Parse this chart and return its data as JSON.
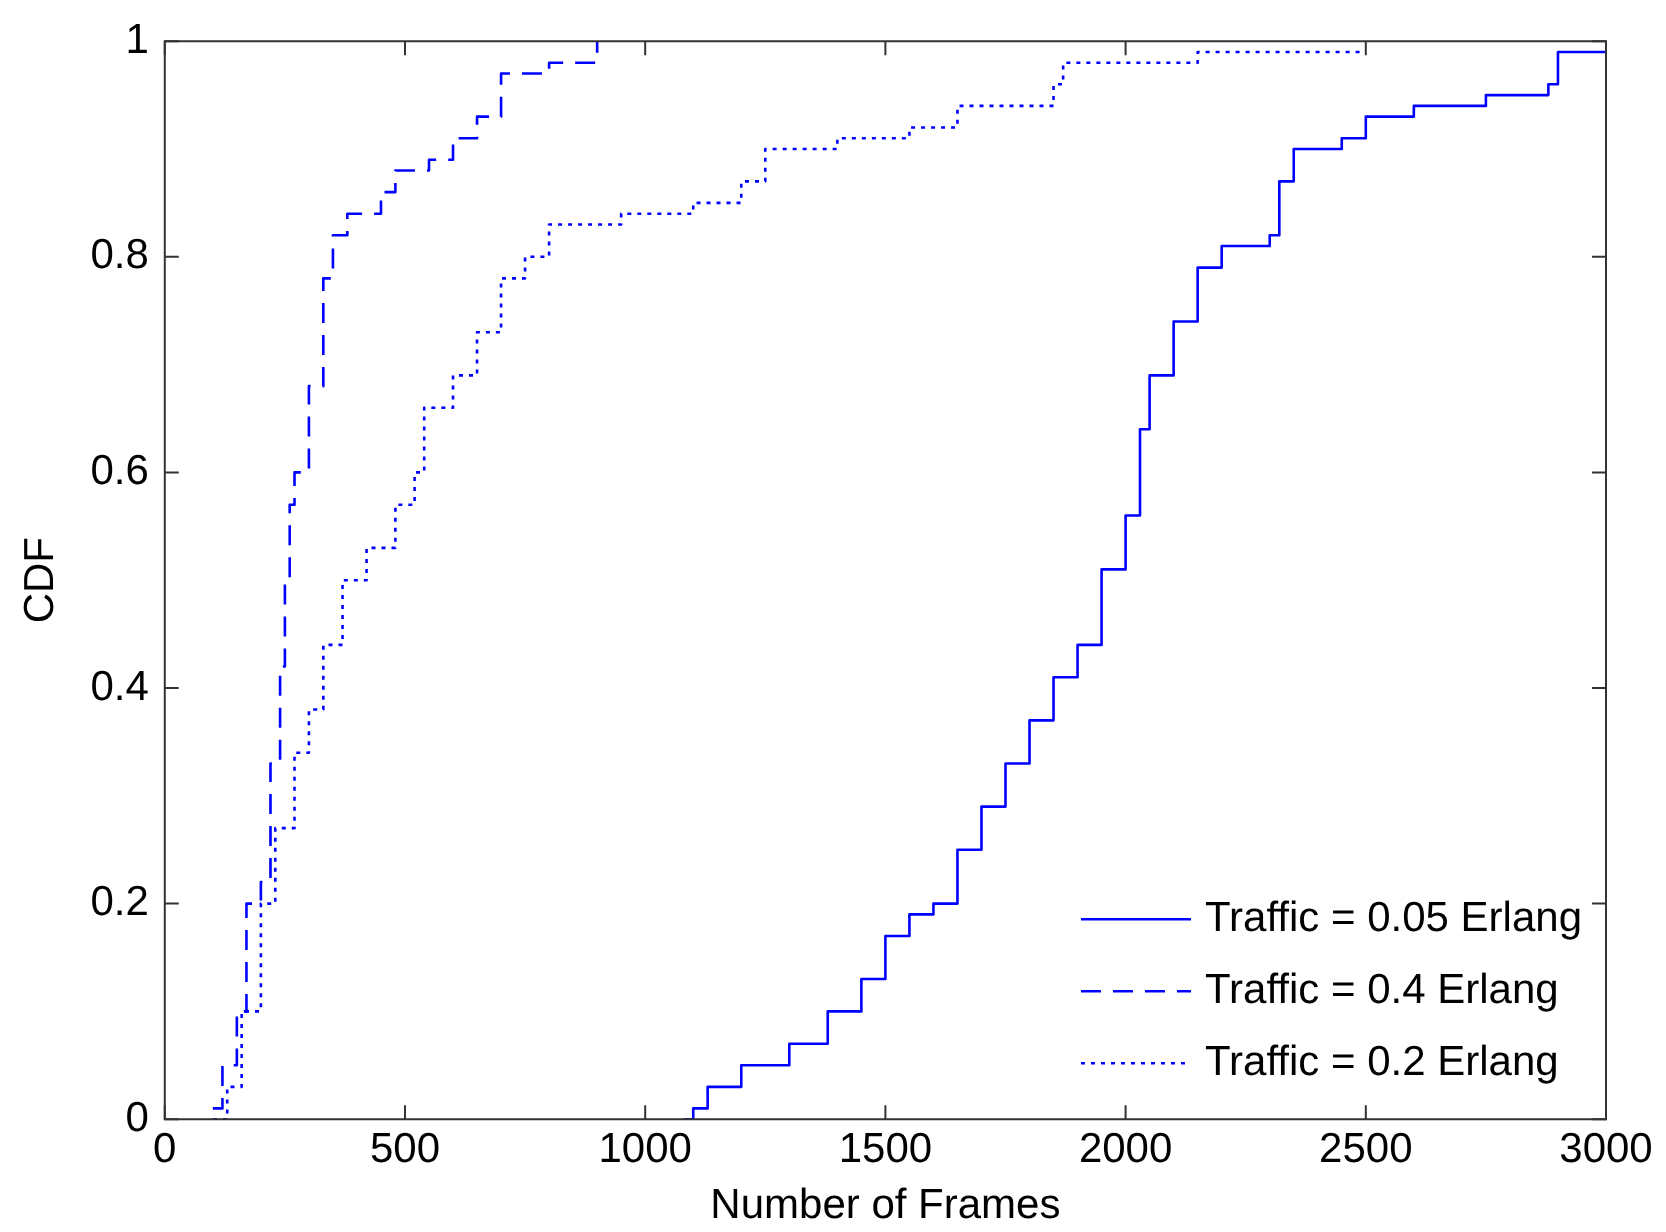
{
  "chart_data": {
    "type": "step",
    "xlabel": "Number of Frames",
    "ylabel": "CDF",
    "xlim": [
      0,
      3000
    ],
    "xticks": [
      0,
      500,
      1000,
      1500,
      2000,
      2500,
      3000
    ],
    "ylim": [
      0,
      1
    ],
    "yticks": [
      0,
      0.2,
      0.4,
      0.6,
      0.8,
      1
    ],
    "grid": false,
    "legend": "bottom right",
    "series": [
      {
        "name": "Traffic = 0.05 Erlang",
        "color": "#0000ff",
        "line_style": "solid",
        "x": [
          1080,
          1100,
          1130,
          1200,
          1300,
          1380,
          1450,
          1500,
          1550,
          1600,
          1650,
          1700,
          1750,
          1800,
          1850,
          1900,
          1950,
          2000,
          2030,
          2050,
          2100,
          2150,
          2200,
          2300,
          2320,
          2350,
          2450,
          2500,
          2600,
          2750,
          2880,
          2900,
          3000
        ],
        "values": [
          0,
          0.01,
          0.03,
          0.05,
          0.07,
          0.1,
          0.13,
          0.17,
          0.19,
          0.2,
          0.25,
          0.29,
          0.33,
          0.37,
          0.41,
          0.44,
          0.51,
          0.56,
          0.64,
          0.69,
          0.74,
          0.79,
          0.81,
          0.82,
          0.87,
          0.9,
          0.91,
          0.93,
          0.94,
          0.95,
          0.96,
          0.99,
          0.99
        ]
      },
      {
        "name": "Traffic = 0.4 Erlang",
        "color": "#0000ff",
        "line_style": "dashed",
        "x": [
          100,
          120,
          150,
          170,
          200,
          220,
          240,
          250,
          260,
          270,
          300,
          330,
          350,
          380,
          450,
          480,
          550,
          600,
          650,
          700,
          800,
          900
        ],
        "values": [
          0.01,
          0.05,
          0.1,
          0.2,
          0.22,
          0.33,
          0.42,
          0.5,
          0.57,
          0.6,
          0.68,
          0.78,
          0.82,
          0.84,
          0.86,
          0.88,
          0.89,
          0.91,
          0.93,
          0.97,
          0.98,
          1
        ]
      },
      {
        "name": "Traffic = 0.2 Erlang",
        "color": "#0000ff",
        "line_style": "dotted",
        "x": [
          100,
          130,
          160,
          200,
          230,
          270,
          300,
          330,
          370,
          420,
          480,
          520,
          540,
          600,
          650,
          700,
          750,
          800,
          950,
          1100,
          1200,
          1250,
          1400,
          1550,
          1650,
          1850,
          1870,
          2150,
          2500
        ],
        "values": [
          0,
          0.03,
          0.1,
          0.2,
          0.27,
          0.34,
          0.38,
          0.44,
          0.5,
          0.53,
          0.57,
          0.6,
          0.66,
          0.69,
          0.73,
          0.78,
          0.8,
          0.83,
          0.84,
          0.85,
          0.87,
          0.9,
          0.91,
          0.92,
          0.94,
          0.96,
          0.98,
          0.99,
          0.99
        ]
      }
    ]
  }
}
